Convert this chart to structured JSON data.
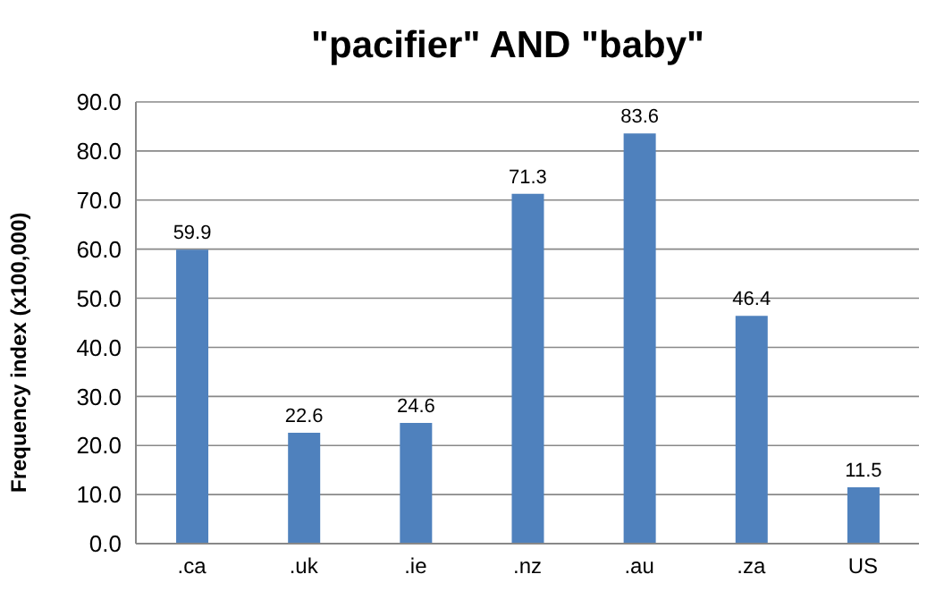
{
  "chart_data": {
    "type": "bar",
    "title": "\"pacifier\" AND \"baby\"",
    "ylabel": "Frequency index (x100,000)",
    "categories": [
      ".ca",
      ".uk",
      ".ie",
      ".nz",
      ".au",
      ".za",
      "US"
    ],
    "values": [
      59.9,
      22.6,
      24.6,
      71.3,
      83.6,
      46.4,
      11.5
    ],
    "color": "#4f81bd",
    "ylim": [
      0,
      90
    ],
    "yticks": [
      {
        "value": 0,
        "label": "0.0"
      },
      {
        "value": 10,
        "label": "10.0"
      },
      {
        "value": 20,
        "label": "20.0"
      },
      {
        "value": 30,
        "label": "30.0"
      },
      {
        "value": 40,
        "label": "40.0"
      },
      {
        "value": 50,
        "label": "50.0"
      },
      {
        "value": 60,
        "label": "60.0"
      },
      {
        "value": 70,
        "label": "70.0"
      },
      {
        "value": 80,
        "label": "80.0"
      },
      {
        "value": 90,
        "label": "90.0"
      }
    ],
    "grid": "y",
    "data_labels": true,
    "legend": false
  }
}
